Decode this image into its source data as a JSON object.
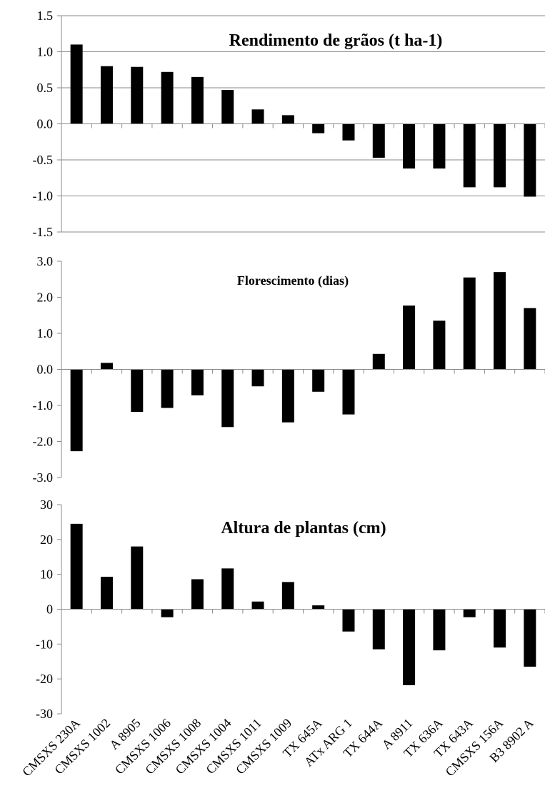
{
  "chart_data": [
    {
      "type": "bar",
      "title": "Rendimento de grãos (t ha-1)",
      "categories": [
        "CMSXS 230A",
        "CMSXS 1002",
        "A 8905",
        "CMSXS 1006",
        "CMSXS 1008",
        "CMSXS 1004",
        "CMSXS 1011",
        "CMSXS 1009",
        "TX 645A",
        "ATx ARG 1",
        "TX 644A",
        "A 8911",
        "TX 636A",
        "TX 643A",
        "CMSXS 156A",
        "B3 8902 A"
      ],
      "values": [
        1.1,
        0.8,
        0.79,
        0.72,
        0.65,
        0.47,
        0.2,
        0.12,
        -0.13,
        -0.23,
        -0.47,
        -0.62,
        -0.62,
        -0.88,
        -0.88,
        -1.01
      ],
      "ylim": [
        -1.5,
        1.5
      ],
      "yticks": [
        "1.5",
        "1.0",
        "0.5",
        "0.0",
        "-0.5",
        "-1.0",
        "-1.5"
      ],
      "grid": true
    },
    {
      "type": "bar",
      "title": "Florescimento (dias)",
      "categories": [
        "CMSXS 230A",
        "CMSXS 1002",
        "A 8905",
        "CMSXS 1006",
        "CMSXS 1008",
        "CMSXS 1004",
        "CMSXS 1011",
        "CMSXS 1009",
        "TX 645A",
        "ATx ARG 1",
        "TX 644A",
        "A 8911",
        "TX 636A",
        "TX 643A",
        "CMSXS 156A",
        "B3 8902 A"
      ],
      "values": [
        -2.27,
        0.18,
        -1.18,
        -1.07,
        -0.72,
        -1.6,
        -0.47,
        -1.47,
        -0.62,
        -1.25,
        0.43,
        1.77,
        1.35,
        2.55,
        2.7,
        1.7
      ],
      "ylim": [
        -3.0,
        3.0
      ],
      "yticks": [
        "3.0",
        "2.0",
        "1.0",
        "0.0",
        "-1.0",
        "-2.0",
        "-3.0"
      ],
      "grid": false
    },
    {
      "type": "bar",
      "title": "Altura de plantas (cm)",
      "categories": [
        "CMSXS 230A",
        "CMSXS 1002",
        "A 8905",
        "CMSXS 1006",
        "CMSXS 1008",
        "CMSXS 1004",
        "CMSXS 1011",
        "CMSXS 1009",
        "TX 645A",
        "ATx ARG 1",
        "TX 644A",
        "A 8911",
        "TX 636A",
        "TX 643A",
        "CMSXS 156A",
        "B3 8902 A"
      ],
      "values": [
        24.5,
        9.3,
        18.0,
        -2.3,
        8.6,
        11.7,
        2.2,
        7.8,
        1.1,
        -6.4,
        -11.5,
        -21.8,
        -11.8,
        -2.3,
        -11.0,
        -16.5
      ],
      "ylim": [
        -30,
        30
      ],
      "yticks": [
        "30",
        "20",
        "10",
        "0",
        "-10",
        "-20",
        "-30"
      ],
      "grid": false
    }
  ]
}
